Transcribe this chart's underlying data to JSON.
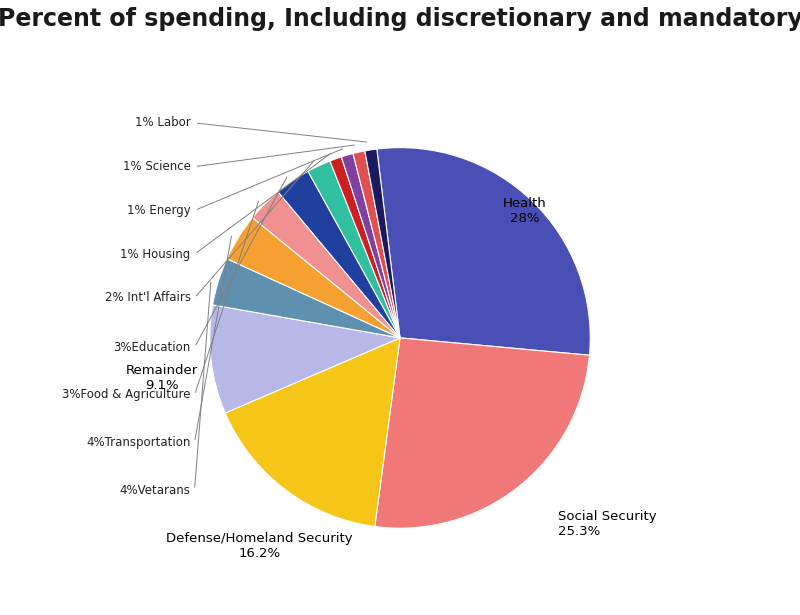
{
  "title": "Percent of spending, Including discretionary and mandatory",
  "slices": [
    {
      "label": "Health",
      "pct_label": "Health\n28%",
      "value": 28.0,
      "color": "#4a4fb5"
    },
    {
      "label": "Social Security",
      "pct_label": "Social Security\n25.3%",
      "value": 25.3,
      "color": "#f07878"
    },
    {
      "label": "Defense/Homeland Security",
      "pct_label": "Defense/Homeland Security\n16.2%",
      "value": 16.2,
      "color": "#f5c518"
    },
    {
      "label": "Remainder",
      "pct_label": "Remainder\n9.1%",
      "value": 9.1,
      "color": "#b8b8e8"
    },
    {
      "label": "4%Vetarans",
      "value": 4.0,
      "color": "#6090b0"
    },
    {
      "label": "4%Transportation",
      "value": 4.0,
      "color": "#f5a030"
    },
    {
      "label": "3%Food & Agriculture",
      "value": 3.0,
      "color": "#f09090"
    },
    {
      "label": "3%Education",
      "value": 3.0,
      "color": "#2040a0"
    },
    {
      "label": "2% Int'l Affairs",
      "value": 2.0,
      "color": "#30c0a0"
    },
    {
      "label": "1% Housing",
      "value": 1.0,
      "color": "#cc2020"
    },
    {
      "label": "1% Energy",
      "value": 1.0,
      "color": "#8040a0"
    },
    {
      "label": "1% Science",
      "value": 1.0,
      "color": "#e05050"
    },
    {
      "label": "1% Labor",
      "value": 1.0,
      "color": "#1a1a60"
    }
  ],
  "background_color": "#ffffff",
  "title_fontsize": 17,
  "figsize": [
    8.0,
    6.15
  ]
}
